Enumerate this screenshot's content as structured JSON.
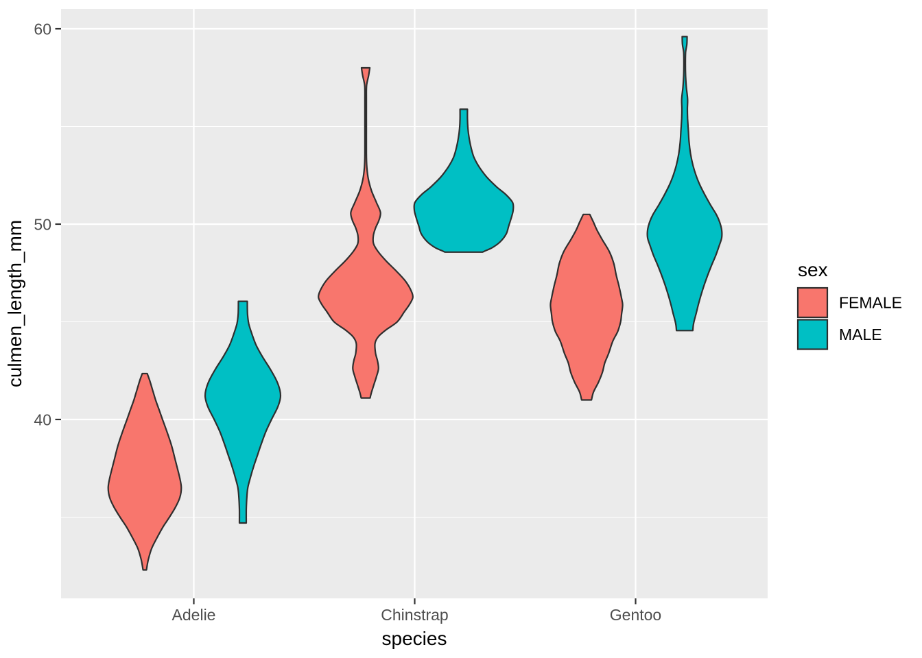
{
  "legend": {
    "title": "sex",
    "position": "right",
    "items": [
      {
        "label": "FEMALE",
        "color": "#F8766D"
      },
      {
        "label": "MALE",
        "color": "#00BFC4"
      }
    ]
  },
  "chart_data": {
    "type": "violin",
    "title": "",
    "xlabel": "species",
    "ylabel": "culmen_length_mm",
    "categories": [
      "Adelie",
      "Chinstrap",
      "Gentoo"
    ],
    "group_by": "sex",
    "groups": [
      "FEMALE",
      "MALE"
    ],
    "y_ticks": [
      40,
      50,
      60
    ],
    "y_minor_ticks": [
      35,
      45,
      55
    ],
    "ylim": [
      30.8,
      61.0
    ],
    "grid": true,
    "legend_position": "right",
    "panel_background": "#EBEBEB",
    "grid_color": "#FFFFFF",
    "outline_color": "#2E2E2E",
    "tick_mark_color": "#333333",
    "tick_label_color": "#4D4D4D",
    "series": [
      {
        "species": "Adelie",
        "sex": "FEMALE",
        "color": "#F8766D",
        "y_min": 32.3,
        "y_max": 42.4,
        "widest_at": 36.5,
        "profile": [
          [
            42.35,
            0.05
          ],
          [
            42.0,
            0.1
          ],
          [
            41.5,
            0.16
          ],
          [
            41.0,
            0.22
          ],
          [
            40.5,
            0.29
          ],
          [
            40.0,
            0.36
          ],
          [
            39.3,
            0.46
          ],
          [
            38.6,
            0.55
          ],
          [
            37.8,
            0.63
          ],
          [
            37.0,
            0.71
          ],
          [
            36.5,
            0.74
          ],
          [
            36.0,
            0.71
          ],
          [
            35.5,
            0.62
          ],
          [
            35.0,
            0.5
          ],
          [
            34.5,
            0.37
          ],
          [
            34.0,
            0.26
          ],
          [
            33.4,
            0.14
          ],
          [
            32.8,
            0.07
          ],
          [
            32.3,
            0.035
          ]
        ]
      },
      {
        "species": "Adelie",
        "sex": "MALE",
        "color": "#00BFC4",
        "y_min": 34.7,
        "y_max": 46.0,
        "widest_at": 41.1,
        "profile": [
          [
            46.05,
            0.09
          ],
          [
            45.4,
            0.095
          ],
          [
            44.9,
            0.12
          ],
          [
            44.4,
            0.18
          ],
          [
            43.8,
            0.27
          ],
          [
            43.2,
            0.4
          ],
          [
            42.6,
            0.55
          ],
          [
            42.0,
            0.68
          ],
          [
            41.5,
            0.75
          ],
          [
            41.1,
            0.76
          ],
          [
            40.6,
            0.7
          ],
          [
            40.0,
            0.58
          ],
          [
            39.4,
            0.47
          ],
          [
            38.8,
            0.38
          ],
          [
            38.2,
            0.3
          ],
          [
            37.6,
            0.22
          ],
          [
            37.0,
            0.15
          ],
          [
            36.5,
            0.1
          ],
          [
            36.0,
            0.08
          ],
          [
            35.4,
            0.07
          ],
          [
            34.7,
            0.07
          ]
        ]
      },
      {
        "species": "Chinstrap",
        "sex": "FEMALE",
        "color": "#F8766D",
        "y_min": 41.1,
        "y_max": 58.0,
        "widest_at": 46.3,
        "profile": [
          [
            58.0,
            0.085
          ],
          [
            57.6,
            0.06
          ],
          [
            57.1,
            0.02
          ],
          [
            56.4,
            0.015
          ],
          [
            55.0,
            0.015
          ],
          [
            53.6,
            0.015
          ],
          [
            52.9,
            0.025
          ],
          [
            52.3,
            0.055
          ],
          [
            51.7,
            0.12
          ],
          [
            51.1,
            0.22
          ],
          [
            50.6,
            0.3
          ],
          [
            50.2,
            0.27
          ],
          [
            49.8,
            0.2
          ],
          [
            49.4,
            0.155
          ],
          [
            49.0,
            0.16
          ],
          [
            48.6,
            0.25
          ],
          [
            48.1,
            0.42
          ],
          [
            47.6,
            0.62
          ],
          [
            47.1,
            0.8
          ],
          [
            46.6,
            0.92
          ],
          [
            46.25,
            0.955
          ],
          [
            45.9,
            0.89
          ],
          [
            45.5,
            0.78
          ],
          [
            45.0,
            0.64
          ],
          [
            44.6,
            0.42
          ],
          [
            44.25,
            0.26
          ],
          [
            43.9,
            0.19
          ],
          [
            43.4,
            0.2
          ],
          [
            43.0,
            0.24
          ],
          [
            42.6,
            0.26
          ],
          [
            42.2,
            0.22
          ],
          [
            41.8,
            0.17
          ],
          [
            41.4,
            0.12
          ],
          [
            41.1,
            0.09
          ]
        ]
      },
      {
        "species": "Chinstrap",
        "sex": "MALE",
        "color": "#00BFC4",
        "y_min": 48.5,
        "y_max": 55.9,
        "widest_at": 50.9,
        "profile": [
          [
            55.88,
            0.075
          ],
          [
            55.4,
            0.075
          ],
          [
            54.9,
            0.085
          ],
          [
            54.4,
            0.11
          ],
          [
            53.9,
            0.15
          ],
          [
            53.4,
            0.21
          ],
          [
            52.9,
            0.32
          ],
          [
            52.4,
            0.47
          ],
          [
            51.9,
            0.67
          ],
          [
            51.5,
            0.86
          ],
          [
            51.1,
            0.99
          ],
          [
            50.7,
            1.0
          ],
          [
            50.3,
            0.96
          ],
          [
            49.9,
            0.91
          ],
          [
            49.5,
            0.86
          ],
          [
            49.1,
            0.74
          ],
          [
            48.8,
            0.58
          ],
          [
            48.65,
            0.45
          ],
          [
            48.57,
            0.38
          ]
        ]
      },
      {
        "species": "Gentoo",
        "sex": "FEMALE",
        "color": "#F8766D",
        "y_min": 41.0,
        "y_max": 50.5,
        "widest_at": 45.9,
        "profile": [
          [
            50.5,
            0.065
          ],
          [
            50.1,
            0.14
          ],
          [
            49.7,
            0.21
          ],
          [
            49.2,
            0.32
          ],
          [
            48.6,
            0.46
          ],
          [
            48.0,
            0.55
          ],
          [
            47.4,
            0.6
          ],
          [
            46.8,
            0.66
          ],
          [
            46.2,
            0.71
          ],
          [
            45.86,
            0.73
          ],
          [
            45.4,
            0.71
          ],
          [
            45.0,
            0.69
          ],
          [
            44.5,
            0.63
          ],
          [
            44.0,
            0.53
          ],
          [
            43.4,
            0.45
          ],
          [
            42.9,
            0.37
          ],
          [
            42.4,
            0.32
          ],
          [
            41.9,
            0.24
          ],
          [
            41.4,
            0.14
          ],
          [
            41.0,
            0.1
          ]
        ]
      },
      {
        "species": "Gentoo",
        "sex": "MALE",
        "color": "#00BFC4",
        "y_min": 44.5,
        "y_max": 59.6,
        "widest_at": 49.5,
        "profile": [
          [
            59.6,
            0.05
          ],
          [
            59.2,
            0.045
          ],
          [
            58.8,
            0.02
          ],
          [
            58.2,
            0.015
          ],
          [
            57.6,
            0.02
          ],
          [
            57.0,
            0.035
          ],
          [
            56.4,
            0.06
          ],
          [
            55.9,
            0.055
          ],
          [
            55.4,
            0.06
          ],
          [
            54.8,
            0.075
          ],
          [
            54.2,
            0.09
          ],
          [
            53.6,
            0.12
          ],
          [
            53.0,
            0.17
          ],
          [
            52.5,
            0.23
          ],
          [
            52.0,
            0.31
          ],
          [
            51.5,
            0.41
          ],
          [
            51.0,
            0.52
          ],
          [
            50.5,
            0.64
          ],
          [
            50.1,
            0.71
          ],
          [
            49.7,
            0.75
          ],
          [
            49.3,
            0.75
          ],
          [
            48.9,
            0.7
          ],
          [
            48.4,
            0.63
          ],
          [
            47.8,
            0.53
          ],
          [
            47.2,
            0.44
          ],
          [
            46.6,
            0.36
          ],
          [
            46.0,
            0.29
          ],
          [
            45.4,
            0.23
          ],
          [
            44.9,
            0.18
          ],
          [
            44.55,
            0.165
          ]
        ]
      }
    ]
  }
}
